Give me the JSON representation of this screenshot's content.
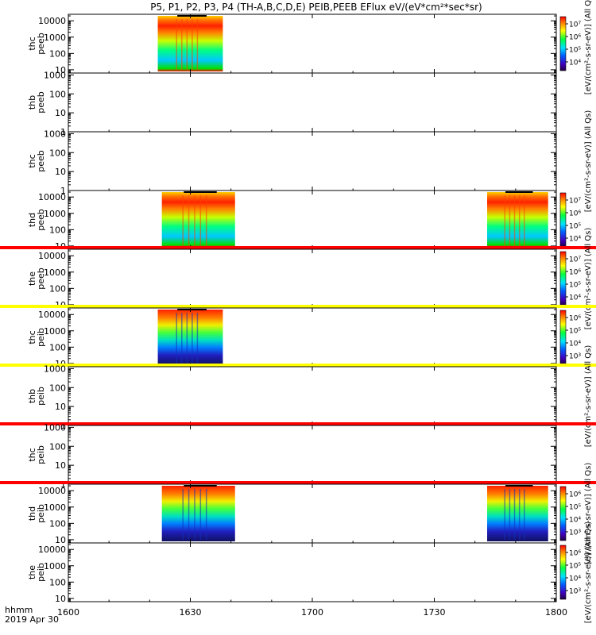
{
  "chart_data": {
    "type": "heatmap",
    "title": "P5, P1, P2, P3, P4 (TH-A,B,C,D,E) PEIB,PEEB EFlux eV/(eV*cm²*sec*sr)",
    "x_ticks": [
      "1600",
      "1630",
      "1700",
      "1730",
      "1800"
    ],
    "x_tick_minutes": [
      0,
      30,
      60,
      90,
      120
    ],
    "x_range_minutes": [
      0,
      120
    ],
    "x_unit_label": "hhmm",
    "date_label": "2019 Apr 30",
    "panels": [
      {
        "label": [
          "thc",
          "peeb"
        ],
        "y_log_range": [
          0.8,
          4.4
        ],
        "y_ticks": [
          "10",
          "100",
          "1000",
          "10000"
        ],
        "blocks": [
          {
            "x_start": 22,
            "x_end": 38,
            "shade": "electron"
          }
        ],
        "colorbar_ticks": [
          "10⁴",
          "10⁵",
          "10⁶",
          "10⁷"
        ],
        "colorbar_label": "[eV/(cm²-s-sr-eV)] (All Qs)"
      },
      {
        "label": [
          "thb",
          "peeb"
        ],
        "y_log_range": [
          0,
          3.1
        ],
        "y_ticks": [
          "1",
          "10",
          "100",
          "1000"
        ],
        "blocks": []
      },
      {
        "label": [
          "thc",
          "peeb"
        ],
        "y_log_range": [
          0,
          3.1
        ],
        "y_ticks": [
          "1",
          "10",
          "100",
          "1000"
        ],
        "blocks": [],
        "colorbar_label": "[eV/(cm²-s-sr-eV)] (All Qs)"
      },
      {
        "label": [
          "thd",
          "peeb"
        ],
        "y_log_range": [
          0.8,
          4.4
        ],
        "y_ticks": [
          "10",
          "100",
          "1000",
          "10000"
        ],
        "blocks": [
          {
            "x_start": 23,
            "x_end": 41,
            "shade": "electron"
          },
          {
            "x_start": 103,
            "x_end": 118,
            "shade": "electron"
          }
        ],
        "colorbar_ticks": [
          "10⁴",
          "10⁵",
          "10⁶",
          "10⁷"
        ]
      },
      {
        "label": [
          "the",
          "peeb"
        ],
        "y_log_range": [
          0.8,
          4.4
        ],
        "y_ticks": [
          "10",
          "100",
          "1000",
          "10000"
        ],
        "blocks": [],
        "top_band": "#ff0000",
        "colorbar_ticks": [
          "10⁴",
          "10⁵",
          "10⁶",
          "10⁷"
        ],
        "colorbar_label": "[eV/(cm²-s-sr-eV)] (All Qs)"
      },
      {
        "label": [
          "thc",
          "peib"
        ],
        "y_log_range": [
          0.8,
          4.4
        ],
        "y_ticks": [
          "10",
          "100",
          "1000",
          "10000"
        ],
        "blocks": [
          {
            "x_start": 22,
            "x_end": 38,
            "shade": "ion"
          }
        ],
        "top_band": "#ffff00",
        "colorbar_ticks": [
          "10³",
          "10⁴",
          "10⁵",
          "10⁶"
        ]
      },
      {
        "label": [
          "thb",
          "peib"
        ],
        "y_log_range": [
          0,
          3.1
        ],
        "y_ticks": [
          "1",
          "10",
          "100",
          "1000"
        ],
        "blocks": [],
        "top_band": "#ffff00",
        "colorbar_label": "[eV/(cm²-s-sr-eV)] (All Qs)"
      },
      {
        "label": [
          "thc",
          "peib"
        ],
        "y_log_range": [
          0,
          3.1
        ],
        "y_ticks": [
          "1",
          "10",
          "100",
          "1000"
        ],
        "blocks": [],
        "top_band": "#ff0000"
      },
      {
        "label": [
          "thd",
          "peib"
        ],
        "y_log_range": [
          0.8,
          4.4
        ],
        "y_ticks": [
          "10",
          "100",
          "1000",
          "10000"
        ],
        "blocks": [
          {
            "x_start": 23,
            "x_end": 41,
            "shade": "ion"
          },
          {
            "x_start": 103,
            "x_end": 118,
            "shade": "ion"
          }
        ],
        "top_band": "#ff0000",
        "colorbar_ticks": [
          "10³",
          "10⁴",
          "10⁵",
          "10⁶"
        ],
        "colorbar_label": "[eV/(cm²-s-sr-eV)] (All Qs)"
      },
      {
        "label": [
          "the",
          "peib"
        ],
        "y_log_range": [
          0.8,
          4.4
        ],
        "y_ticks": [
          "10",
          "100",
          "1000",
          "10000"
        ],
        "blocks": [],
        "colorbar_ticks": [
          "10³",
          "10⁴",
          "10⁵",
          "10⁶"
        ],
        "colorbar_label": "[eV/(cm²-s-sr-eV)] (All Qs)"
      }
    ]
  }
}
